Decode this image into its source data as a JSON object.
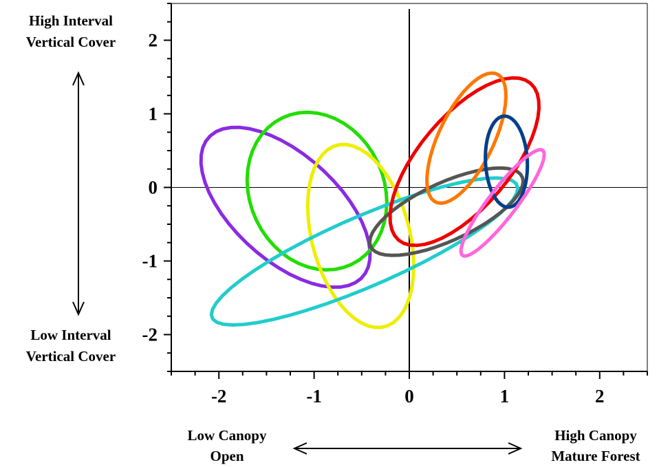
{
  "chart_data": {
    "type": "scatter",
    "title": "",
    "xlabel": "",
    "ylabel": "",
    "xlim": [
      -2.5,
      2.5
    ],
    "ylim": [
      -2.5,
      2.5
    ],
    "x_ticks": [
      -2,
      -1,
      0,
      1,
      2
    ],
    "y_ticks": [
      -2,
      -1,
      0,
      1,
      2
    ],
    "x_tick_labels": [
      "-2",
      "-1",
      "0",
      "1",
      "2"
    ],
    "y_tick_labels": [
      "-2",
      "-1",
      "0",
      "1",
      "2"
    ],
    "reference_lines": {
      "x": 0,
      "y": 0
    },
    "grid": false,
    "axis_annotations": {
      "y_high": [
        "High Interval",
        "Vertical Cover"
      ],
      "y_low": [
        "Low Interval",
        "Vertical Cover"
      ],
      "x_low": [
        "Low Canopy",
        "Open"
      ],
      "x_high": [
        "High Canopy",
        "Mature Forest"
      ]
    },
    "series": [
      {
        "color": "#8a2be2",
        "shape": "ellipse",
        "center": [
          -1.3,
          -0.27
        ],
        "half_width": 0.62,
        "half_height": 1.26,
        "angle_deg": -35.5
      },
      {
        "color": "#22dd00",
        "shape": "ellipse",
        "center": [
          -0.97,
          -0.05
        ],
        "half_width": 0.72,
        "half_height": 1.08,
        "angle_deg": -10
      },
      {
        "color": "#eeee00",
        "shape": "ellipse",
        "center": [
          -0.51,
          -0.66
        ],
        "half_width": 0.52,
        "half_height": 1.26,
        "angle_deg": -10
      },
      {
        "color": "#22cccc",
        "shape": "ellipse",
        "center": [
          -0.47,
          -0.87
        ],
        "half_width": 0.45,
        "half_height": 1.84,
        "angle_deg": 60
      },
      {
        "color": "#555555",
        "shape": "ellipse",
        "center": [
          0.39,
          -0.33
        ],
        "half_width": 0.37,
        "half_height": 0.93,
        "angle_deg": 57
      },
      {
        "color": "#ee0000",
        "shape": "ellipse",
        "center": [
          0.58,
          0.35
        ],
        "half_width": 0.52,
        "half_height": 1.28,
        "angle_deg": 30
      },
      {
        "color": "#ff7700",
        "shape": "ellipse",
        "center": [
          0.6,
          0.67
        ],
        "half_width": 0.3,
        "half_height": 0.93,
        "angle_deg": 19
      },
      {
        "color": "#003f8a",
        "shape": "ellipse",
        "center": [
          1.02,
          0.35
        ],
        "half_width": 0.22,
        "half_height": 0.62,
        "angle_deg": -2
      },
      {
        "color": "#ff66dd",
        "shape": "ellipse",
        "center": [
          0.98,
          -0.21
        ],
        "half_width": 0.16,
        "half_height": 0.83,
        "angle_deg": 30
      }
    ]
  }
}
